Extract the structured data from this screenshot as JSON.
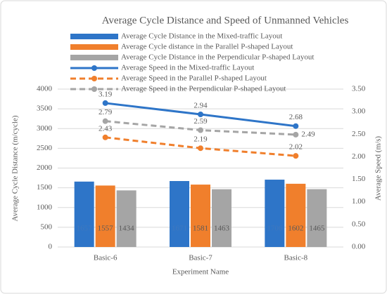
{
  "chart_data": {
    "type": "bar-line",
    "title": "Average Cycle Distance and Speed of Unmanned Vehicles",
    "x_label": "Experiment Name",
    "y_label": "Average Cycle Distance  (m/cycle)",
    "y2_label": "Average Speed  (m/s)",
    "categories": [
      "Basic-6",
      "Basic-7",
      "Basic-8"
    ],
    "series": [
      {
        "name": "Average Cycle Distance in the Mixed-traffic Layout",
        "type": "bar",
        "color": "#2e75c8",
        "label_color": "#3f78be",
        "values": [
          1657,
          1671,
          1706
        ]
      },
      {
        "name": "Average Cycle distance in the Parallel P-shaped Layout",
        "type": "bar",
        "color": "#f07f2c",
        "label_color": "#595959",
        "values": [
          1557,
          1581,
          1602
        ]
      },
      {
        "name": "Average Cycle Distance in the Perpendicular P-shaped Layout",
        "type": "bar",
        "color": "#a5a5a5",
        "label_color": "#595959",
        "values": [
          1434,
          1463,
          1465
        ]
      },
      {
        "name": "Average Speed in the Mixed-traffic Layout",
        "type": "line",
        "axis": "y2",
        "dashed": false,
        "color": "#2e75c8",
        "values": [
          3.19,
          2.94,
          2.68
        ]
      },
      {
        "name": "Average Speed in the Parallel P-shaped Layout",
        "type": "line",
        "axis": "y2",
        "dashed": true,
        "color": "#f07f2c",
        "values": [
          2.43,
          2.19,
          2.02
        ]
      },
      {
        "name": "Average Speed in the Perpendicular P-shaped Layout",
        "type": "line",
        "axis": "y2",
        "dashed": true,
        "color": "#a5a5a5",
        "values": [
          2.79,
          2.59,
          2.49
        ]
      }
    ],
    "ylim": [
      0,
      4000
    ],
    "yticks": [
      0,
      500,
      1000,
      1500,
      2000,
      2500,
      3000,
      3500,
      4000
    ],
    "y2lim": [
      0,
      3.5
    ],
    "y2ticks": [
      {
        "value": 0,
        "label": "0.00"
      },
      {
        "value": 0.5,
        "label": "0.50"
      },
      {
        "value": 1,
        "label": "1.00"
      },
      {
        "value": 1.5,
        "label": "1.50"
      },
      {
        "value": 2,
        "label": "2.00"
      },
      {
        "value": 2.5,
        "label": "2.50"
      },
      {
        "value": 3,
        "label": "3.00"
      },
      {
        "value": 3.5,
        "label": "3.50"
      }
    ],
    "grid": true
  }
}
